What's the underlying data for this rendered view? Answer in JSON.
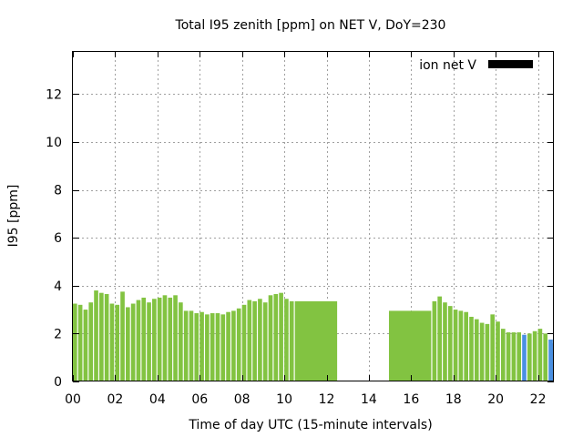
{
  "chart_data": {
    "type": "bar",
    "title": "Total I95 zenith [ppm] on NET V, DoY=230",
    "xlabel": "Time of day UTC (15-minute intervals)",
    "ylabel": "I95 [ppm]",
    "xlim": [
      0,
      22.75
    ],
    "ylim": [
      0,
      13.8
    ],
    "x_ticks": [
      0,
      2,
      4,
      6,
      8,
      10,
      12,
      14,
      16,
      18,
      20,
      22
    ],
    "x_tick_labels": [
      "00",
      "02",
      "04",
      "06",
      "08",
      "10",
      "12",
      "14",
      "16",
      "18",
      "20",
      "22"
    ],
    "y_ticks": [
      0,
      2,
      4,
      6,
      8,
      10,
      12
    ],
    "grid": true,
    "legend": {
      "position": "top-right",
      "entries": [
        {
          "label": "ion net V",
          "color": "#000000"
        }
      ]
    },
    "colors": {
      "green": "#82c341",
      "blue": "#4a90e2"
    },
    "bar_width_hours": 0.2,
    "series": [
      {
        "values": [
          {
            "x": 0.0,
            "y": 3.25,
            "c": "green"
          },
          {
            "x": 0.25,
            "y": 3.2,
            "c": "green"
          },
          {
            "x": 0.5,
            "y": 3.0,
            "c": "green"
          },
          {
            "x": 0.75,
            "y": 3.3,
            "c": "green"
          },
          {
            "x": 1.0,
            "y": 3.8,
            "c": "green"
          },
          {
            "x": 1.25,
            "y": 3.7,
            "c": "green"
          },
          {
            "x": 1.5,
            "y": 3.65,
            "c": "green"
          },
          {
            "x": 1.75,
            "y": 3.25,
            "c": "green"
          },
          {
            "x": 2.0,
            "y": 3.2,
            "c": "green"
          },
          {
            "x": 2.25,
            "y": 3.75,
            "c": "green"
          },
          {
            "x": 2.5,
            "y": 3.1,
            "c": "green"
          },
          {
            "x": 2.75,
            "y": 3.25,
            "c": "green"
          },
          {
            "x": 3.0,
            "y": 3.4,
            "c": "green"
          },
          {
            "x": 3.25,
            "y": 3.5,
            "c": "green"
          },
          {
            "x": 3.5,
            "y": 3.3,
            "c": "green"
          },
          {
            "x": 3.75,
            "y": 3.45,
            "c": "green"
          },
          {
            "x": 4.0,
            "y": 3.5,
            "c": "green"
          },
          {
            "x": 4.25,
            "y": 3.6,
            "c": "green"
          },
          {
            "x": 4.5,
            "y": 3.5,
            "c": "green"
          },
          {
            "x": 4.75,
            "y": 3.6,
            "c": "green"
          },
          {
            "x": 5.0,
            "y": 3.3,
            "c": "green"
          },
          {
            "x": 5.25,
            "y": 2.95,
            "c": "green"
          },
          {
            "x": 5.5,
            "y": 2.95,
            "c": "green"
          },
          {
            "x": 5.75,
            "y": 2.85,
            "c": "green"
          },
          {
            "x": 6.0,
            "y": 2.9,
            "c": "green"
          },
          {
            "x": 6.25,
            "y": 2.8,
            "c": "green"
          },
          {
            "x": 6.5,
            "y": 2.85,
            "c": "green"
          },
          {
            "x": 6.75,
            "y": 2.85,
            "c": "green"
          },
          {
            "x": 7.0,
            "y": 2.8,
            "c": "green"
          },
          {
            "x": 7.25,
            "y": 2.9,
            "c": "green"
          },
          {
            "x": 7.5,
            "y": 2.95,
            "c": "green"
          },
          {
            "x": 7.75,
            "y": 3.05,
            "c": "green"
          },
          {
            "x": 8.0,
            "y": 3.2,
            "c": "green"
          },
          {
            "x": 8.25,
            "y": 3.4,
            "c": "green"
          },
          {
            "x": 8.5,
            "y": 3.35,
            "c": "green"
          },
          {
            "x": 8.75,
            "y": 3.45,
            "c": "green"
          },
          {
            "x": 9.0,
            "y": 3.3,
            "c": "green"
          },
          {
            "x": 9.25,
            "y": 3.6,
            "c": "green"
          },
          {
            "x": 9.5,
            "y": 3.65,
            "c": "green"
          },
          {
            "x": 9.75,
            "y": 3.7,
            "c": "green"
          },
          {
            "x": 10.0,
            "y": 3.45,
            "c": "green"
          },
          {
            "x": 10.25,
            "y": 3.35,
            "c": "green"
          },
          {
            "x": 10.5,
            "y": 3.35,
            "c": "green",
            "w": 2.0
          },
          {
            "x": 14.95,
            "y": 2.95,
            "c": "green",
            "w": 2.0
          },
          {
            "x": 17.0,
            "y": 3.35,
            "c": "green"
          },
          {
            "x": 17.25,
            "y": 3.55,
            "c": "green"
          },
          {
            "x": 17.5,
            "y": 3.3,
            "c": "green"
          },
          {
            "x": 17.75,
            "y": 3.15,
            "c": "green"
          },
          {
            "x": 18.0,
            "y": 3.0,
            "c": "green"
          },
          {
            "x": 18.25,
            "y": 2.95,
            "c": "green"
          },
          {
            "x": 18.5,
            "y": 2.9,
            "c": "green"
          },
          {
            "x": 18.75,
            "y": 2.7,
            "c": "green"
          },
          {
            "x": 19.0,
            "y": 2.6,
            "c": "green"
          },
          {
            "x": 19.25,
            "y": 2.45,
            "c": "green"
          },
          {
            "x": 19.5,
            "y": 2.4,
            "c": "green"
          },
          {
            "x": 19.75,
            "y": 2.8,
            "c": "green"
          },
          {
            "x": 20.0,
            "y": 2.5,
            "c": "green"
          },
          {
            "x": 20.25,
            "y": 2.2,
            "c": "green"
          },
          {
            "x": 20.5,
            "y": 2.05,
            "c": "green"
          },
          {
            "x": 20.75,
            "y": 2.05,
            "c": "green"
          },
          {
            "x": 21.0,
            "y": 2.05,
            "c": "green"
          },
          {
            "x": 21.25,
            "y": 1.95,
            "c": "blue"
          },
          {
            "x": 21.5,
            "y": 2.0,
            "c": "green"
          },
          {
            "x": 21.75,
            "y": 2.1,
            "c": "green"
          },
          {
            "x": 22.0,
            "y": 2.2,
            "c": "green"
          },
          {
            "x": 22.25,
            "y": 2.0,
            "c": "green"
          },
          {
            "x": 22.5,
            "y": 1.75,
            "c": "blue"
          },
          {
            "x": 22.65,
            "y": 1.6,
            "c": "blue",
            "w": 0.1
          }
        ]
      }
    ]
  }
}
